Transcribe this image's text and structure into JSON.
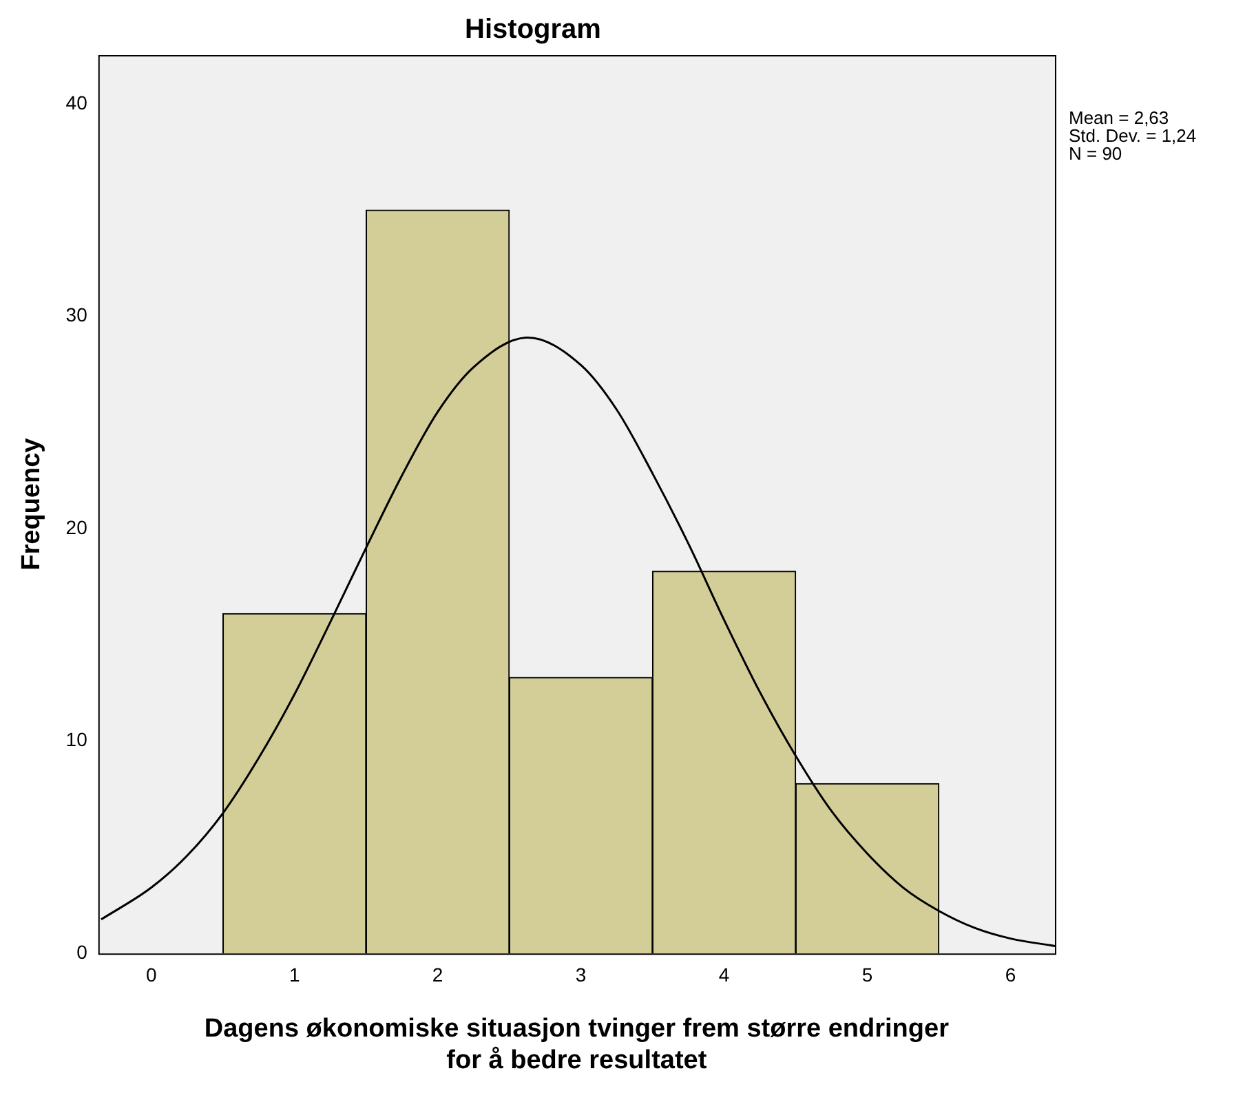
{
  "chart_data": {
    "type": "histogram",
    "title": "Histogram",
    "xlabel": "Dagens økonomiske situasjon tvinger frem større endringer for å bedre resultatet",
    "ylabel": "Frequency",
    "bins": [
      0.5,
      1.5,
      2.5,
      3.5,
      4.5,
      5.5
    ],
    "values": [
      16,
      35,
      13,
      18,
      8
    ],
    "color": "#d3ce97",
    "series": [
      {
        "type": "line",
        "color": "#000000",
        "x": [
          -0.35,
          0,
          0.25,
          0.5,
          0.75,
          1,
          1.25,
          1.5,
          1.75,
          2,
          2.25,
          2.63,
          3,
          3.25,
          3.5,
          3.75,
          4,
          4.25,
          4.5,
          4.75,
          5,
          5.25,
          5.5,
          5.75,
          6,
          6.31
        ],
        "values": [
          1.6,
          3.1,
          4.6,
          6.6,
          9.2,
          12.2,
          15.6,
          19.1,
          22.5,
          25.5,
          27.6,
          29.0,
          27.7,
          25.6,
          22.6,
          19.3,
          15.7,
          12.3,
          9.3,
          6.7,
          4.7,
          3.1,
          2.0,
          1.2,
          0.7,
          0.35
        ]
      }
    ],
    "xlim": [
      -0.37,
      6.31
    ],
    "xticks": [
      0,
      1,
      2,
      3,
      4,
      5,
      6
    ],
    "ylim": [
      0,
      42.3
    ],
    "yticks": [
      0,
      10,
      20,
      30,
      40
    ],
    "grid": false,
    "legend": false,
    "annotations": [
      "Mean = 2,63",
      "Std. Dev. = 1,24",
      "N = 90"
    ]
  }
}
